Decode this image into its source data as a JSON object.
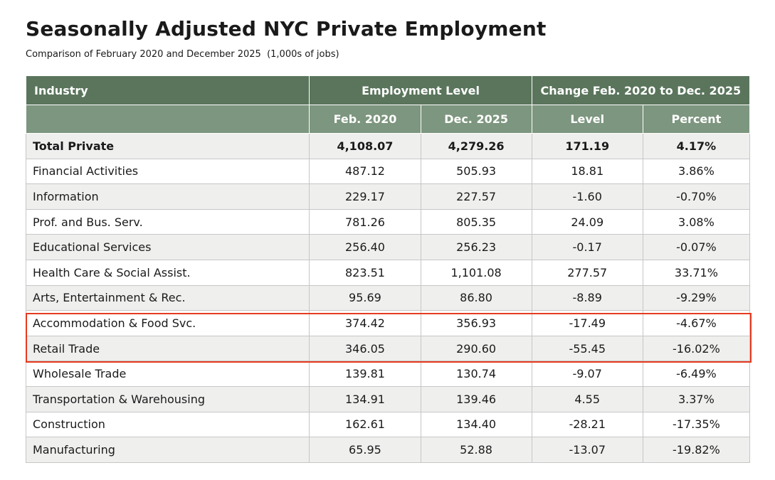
{
  "title": "Seasonally Adjusted NYC Private Employment",
  "subtitle": "Comparison of February 2020 and December 2025  (1,000s of jobs)",
  "colors": {
    "header_dark": "#5a755c",
    "header_light": "#7d967f",
    "row_alt": "#eff0ee",
    "highlight": "#e63a1f"
  },
  "chart_data": {
    "type": "table",
    "header_groups": [
      "Industry",
      "Employment Level",
      "Change Feb. 2020 to Dec. 2025"
    ],
    "columns": [
      "Feb. 2020",
      "Dec. 2025",
      "Level",
      "Percent"
    ],
    "rows": [
      {
        "industry": "Total Private",
        "feb2020": "4,108.07",
        "dec2025": "4,279.26",
        "level": "171.19",
        "percent": "4.17%"
      },
      {
        "industry": "Financial Activities",
        "feb2020": "487.12",
        "dec2025": "505.93",
        "level": "18.81",
        "percent": "3.86%"
      },
      {
        "industry": "Information",
        "feb2020": "229.17",
        "dec2025": "227.57",
        "level": "-1.60",
        "percent": "-0.70%"
      },
      {
        "industry": "Prof. and Bus. Serv.",
        "feb2020": "781.26",
        "dec2025": "805.35",
        "level": "24.09",
        "percent": "3.08%"
      },
      {
        "industry": "Educational Services",
        "feb2020": "256.40",
        "dec2025": "256.23",
        "level": "-0.17",
        "percent": "-0.07%"
      },
      {
        "industry": "Health Care & Social Assist.",
        "feb2020": "823.51",
        "dec2025": "1,101.08",
        "level": "277.57",
        "percent": "33.71%"
      },
      {
        "industry": "Arts, Entertainment & Rec.",
        "feb2020": "95.69",
        "dec2025": "86.80",
        "level": "-8.89",
        "percent": "-9.29%"
      },
      {
        "industry": "Accommodation & Food Svc.",
        "feb2020": "374.42",
        "dec2025": "356.93",
        "level": "-17.49",
        "percent": "-4.67%"
      },
      {
        "industry": "Retail Trade",
        "feb2020": "346.05",
        "dec2025": "290.60",
        "level": "-55.45",
        "percent": "-16.02%"
      },
      {
        "industry": "Wholesale Trade",
        "feb2020": "139.81",
        "dec2025": "130.74",
        "level": "-9.07",
        "percent": "-6.49%"
      },
      {
        "industry": "Transportation & Warehousing",
        "feb2020": "134.91",
        "dec2025": "139.46",
        "level": "4.55",
        "percent": "3.37%"
      },
      {
        "industry": "Construction",
        "feb2020": "162.61",
        "dec2025": "134.40",
        "level": "-28.21",
        "percent": "-17.35%"
      },
      {
        "industry": "Manufacturing",
        "feb2020": "65.95",
        "dec2025": "52.88",
        "level": "-13.07",
        "percent": "-19.82%"
      }
    ],
    "highlighted_rows": [
      "Accommodation & Food Svc.",
      "Retail Trade"
    ]
  }
}
